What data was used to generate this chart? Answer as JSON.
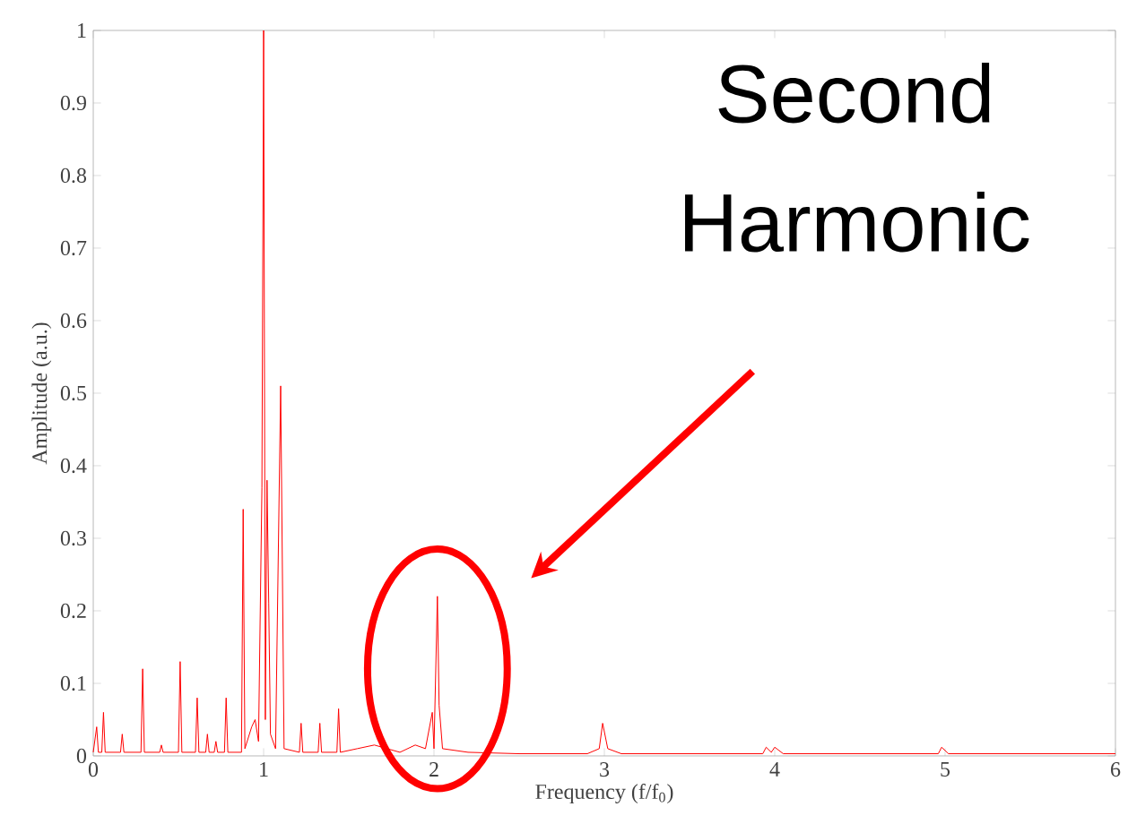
{
  "chart_data": {
    "type": "line",
    "xlabel": "Frequency (f/f$_{0}$)",
    "ylabel": "Amplitude (a.u.)",
    "xlim": [
      0,
      6
    ],
    "ylim": [
      0,
      1
    ],
    "xticks": [
      0,
      1,
      2,
      3,
      4,
      5,
      6
    ],
    "yticks": [
      0,
      0.1,
      0.2,
      0.3,
      0.4,
      0.5,
      0.6,
      0.7,
      0.8,
      0.9,
      1
    ],
    "grid": false,
    "marker": "none",
    "line_style": "solid",
    "annotations": [
      "Second Harmonic"
    ],
    "series": [
      {
        "color": "#ff0000",
        "x": [
          0,
          0.02,
          0.03,
          0.05,
          0.06,
          0.07,
          0.16,
          0.17,
          0.18,
          0.28,
          0.29,
          0.3,
          0.39,
          0.4,
          0.41,
          0.5,
          0.51,
          0.52,
          0.6,
          0.61,
          0.62,
          0.66,
          0.67,
          0.68,
          0.71,
          0.72,
          0.73,
          0.77,
          0.78,
          0.79,
          0.87,
          0.88,
          0.89,
          0.93,
          0.95,
          0.97,
          0.99,
          1.0,
          1.01,
          1.02,
          1.03,
          1.04,
          1.07,
          1.1,
          1.12,
          1.21,
          1.22,
          1.23,
          1.32,
          1.33,
          1.34,
          1.43,
          1.44,
          1.45,
          1.55,
          1.65,
          1.8,
          1.89,
          1.95,
          1.99,
          2.0,
          2.02,
          2.03,
          2.05,
          2.2,
          2.5,
          2.9,
          2.97,
          2.99,
          3.02,
          3.1,
          3.5,
          3.93,
          3.95,
          3.98,
          4.0,
          4.05,
          4.5,
          4.96,
          4.98,
          5.02,
          5.5,
          6.0
        ],
        "values": [
          0.005,
          0.04,
          0.005,
          0.005,
          0.06,
          0.005,
          0.005,
          0.03,
          0.005,
          0.005,
          0.12,
          0.005,
          0.005,
          0.015,
          0.005,
          0.005,
          0.13,
          0.005,
          0.005,
          0.08,
          0.005,
          0.005,
          0.03,
          0.005,
          0.005,
          0.02,
          0.005,
          0.005,
          0.08,
          0.005,
          0.005,
          0.34,
          0.01,
          0.04,
          0.05,
          0.02,
          0.37,
          1.0,
          0.05,
          0.38,
          0.21,
          0.03,
          0.01,
          0.51,
          0.01,
          0.005,
          0.045,
          0.005,
          0.005,
          0.045,
          0.005,
          0.005,
          0.065,
          0.005,
          0.01,
          0.015,
          0.005,
          0.015,
          0.01,
          0.06,
          0.01,
          0.22,
          0.07,
          0.01,
          0.005,
          0.003,
          0.003,
          0.01,
          0.045,
          0.01,
          0.003,
          0.003,
          0.003,
          0.012,
          0.005,
          0.012,
          0.003,
          0.003,
          0.003,
          0.012,
          0.003,
          0.003,
          0.003
        ]
      }
    ]
  }
}
